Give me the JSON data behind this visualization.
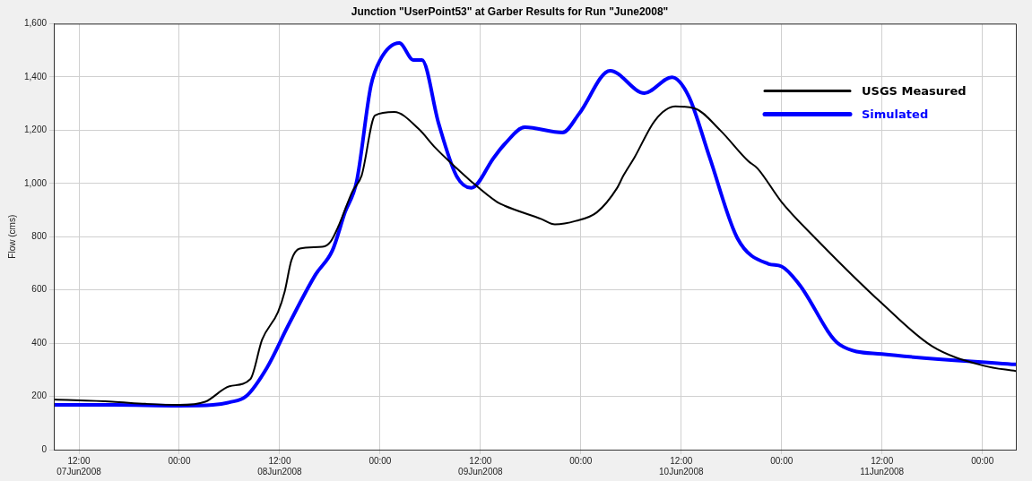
{
  "chart_data": {
    "type": "line",
    "title": "Junction \"UserPoint53\" at Garber Results for Run \"June2008\"",
    "ylabel": "Flow (cms)",
    "xlim": [
      "2008-06-07T09:00",
      "2008-06-12T04:00"
    ],
    "xticks": [
      {
        "value": "2008-06-07T12:00",
        "label": "12:00\n07Jun2008"
      },
      {
        "value": "2008-06-08T00:00",
        "label": "00:00"
      },
      {
        "value": "2008-06-08T12:00",
        "label": "12:00\n08Jun2008"
      },
      {
        "value": "2008-06-09T00:00",
        "label": "00:00"
      },
      {
        "value": "2008-06-09T12:00",
        "label": "12:00\n09Jun2008"
      },
      {
        "value": "2008-06-10T00:00",
        "label": "00:00"
      },
      {
        "value": "2008-06-10T12:00",
        "label": "12:00\n10Jun2008"
      },
      {
        "value": "2008-06-11T00:00",
        "label": "00:00"
      },
      {
        "value": "2008-06-11T12:00",
        "label": "12:00\n11Jun2008"
      },
      {
        "value": "2008-06-12T00:00",
        "label": "00:00"
      }
    ],
    "ylim": [
      0,
      1600
    ],
    "yticks": [
      0,
      200,
      400,
      600,
      800,
      {
        "value": 1000,
        "label": "1,000"
      },
      {
        "value": 1200,
        "label": "1,200"
      },
      {
        "value": 1400,
        "label": "1,400"
      },
      {
        "value": 1600,
        "label": "1,600"
      }
    ],
    "grid": true,
    "legend": "top right",
    "marker": "none",
    "line_style": "solid",
    "series": [
      {
        "name": "USGS Measured",
        "color": "#000000",
        "x": [
          "2008-06-07T09:00",
          "2008-06-07T16:00",
          "2008-06-07T20:00",
          "2008-06-08T00:00",
          "2008-06-08T03:06",
          "2008-06-08T06:00",
          "2008-06-08T08:30",
          "2008-06-08T09:54",
          "2008-06-08T11:48",
          "2008-06-08T12:36",
          "2008-06-08T13:24",
          "2008-06-08T14:24",
          "2008-06-08T17:06",
          "2008-06-08T18:06",
          "2008-06-08T19:06",
          "2008-06-08T20:42",
          "2008-06-08T21:48",
          "2008-06-08T23:24",
          "2008-06-09T01:42",
          "2008-06-09T04:36",
          "2008-06-09T06:36",
          "2008-06-09T08:42",
          "2008-06-09T10:42",
          "2008-06-09T14:00",
          "2008-06-09T14:54",
          "2008-06-09T19:18",
          "2008-06-09T20:54",
          "2008-06-09T23:24",
          "2008-06-10T01:54",
          "2008-06-10T04:18",
          "2008-06-10T05:06",
          "2008-06-10T06:24",
          "2008-06-10T08:54",
          "2008-06-10T11:18",
          "2008-06-10T13:36",
          "2008-06-10T16:42",
          "2008-06-10T20:00",
          "2008-06-10T21:06",
          "2008-06-11T00:00",
          "2008-06-11T04:12",
          "2008-06-11T12:00",
          "2008-06-11T18:00",
          "2008-06-12T00:12",
          "2008-06-12T04:00"
        ],
        "values": [
          188,
          180,
          172,
          168,
          180,
          238,
          265,
          413,
          517,
          594,
          711,
          755,
          762,
          782,
          845,
          970,
          1030,
          1255,
          1268,
          1205,
          1134,
          1070,
          1013,
          930,
          916,
          866,
          846,
          859,
          891,
          981,
          1030,
          1097,
          1238,
          1289,
          1282,
          1198,
          1084,
          1057,
          930,
          789,
          549,
          388,
          315,
          295
        ]
      },
      {
        "name": "Simulated",
        "color": "#0000ff",
        "x": [
          "2008-06-07T09:00",
          "2008-06-07T16:00",
          "2008-06-08T00:00",
          "2008-06-08T04:00",
          "2008-06-08T06:00",
          "2008-06-08T08:00",
          "2008-06-08T10:30",
          "2008-06-08T13:00",
          "2008-06-08T16:18",
          "2008-06-08T18:18",
          "2008-06-08T19:48",
          "2008-06-08T21:12",
          "2008-06-08T22:54",
          "2008-06-09T00:00",
          "2008-06-09T02:18",
          "2008-06-09T04:00",
          "2008-06-09T05:00",
          "2008-06-09T07:00",
          "2008-06-09T09:06",
          "2008-06-09T10:54",
          "2008-06-09T13:36",
          "2008-06-09T14:54",
          "2008-06-09T17:18",
          "2008-06-09T21:48",
          "2008-06-09T23:48",
          "2008-06-10T03:30",
          "2008-06-10T07:36",
          "2008-06-10T10:54",
          "2008-06-10T12:54",
          "2008-06-10T15:24",
          "2008-06-10T18:42",
          "2008-06-10T22:24",
          "2008-06-11T00:00",
          "2008-06-11T02:06",
          "2008-06-11T07:00",
          "2008-06-11T12:00",
          "2008-06-12T04:00"
        ],
        "values": [
          168,
          168,
          165,
          168,
          178,
          201,
          309,
          465,
          658,
          748,
          891,
          1007,
          1366,
          1463,
          1527,
          1463,
          1463,
          1225,
          1030,
          983,
          1097,
          1148,
          1211,
          1191,
          1262,
          1423,
          1339,
          1399,
          1327,
          1097,
          795,
          698,
          688,
          621,
          393,
          359,
          320
        ]
      }
    ]
  }
}
